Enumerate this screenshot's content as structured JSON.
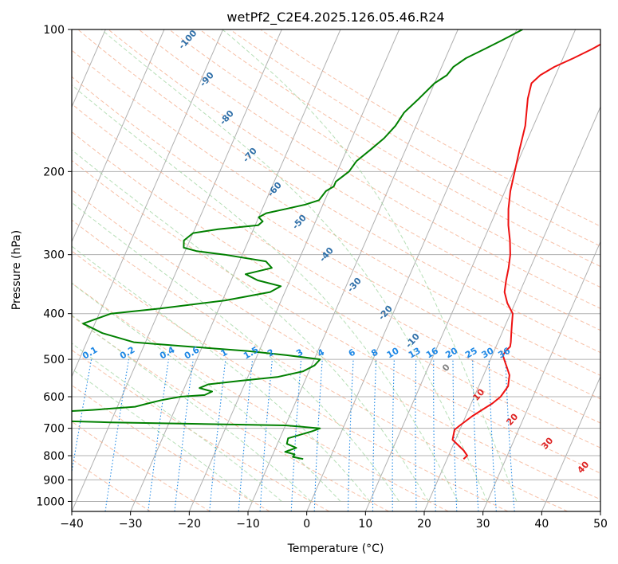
{
  "chart_data": {
    "type": "line",
    "title": "wetPf2_C2E4.2025.126.05.46.R24",
    "xlabel": "Temperature (°C)",
    "ylabel": "Pressure (hPa)",
    "xlim": [
      -40,
      50
    ],
    "ylim_hpa": [
      1050,
      100
    ],
    "y_scale": "log",
    "x_ticks": [
      -40,
      -30,
      -20,
      -10,
      0,
      10,
      20,
      30,
      40,
      50
    ],
    "x_tick_labels": [
      "−40",
      "−30",
      "−20",
      "−10",
      "0",
      "10",
      "20",
      "30",
      "40",
      "50"
    ],
    "y_ticks": [
      1000,
      900,
      800,
      700,
      600,
      500,
      400,
      300,
      200,
      100
    ],
    "y_tick_labels": [
      "1000",
      "900",
      "800",
      "700",
      "600",
      "500",
      "400",
      "300",
      "200",
      "100"
    ],
    "grid": true,
    "skew": true,
    "isotherms_C": [
      -120,
      -110,
      -100,
      -90,
      -80,
      -70,
      -60,
      -50,
      -40,
      -30,
      -20,
      -10,
      0,
      10,
      20,
      30,
      40,
      50
    ],
    "dry_adiabats_C": [
      -30,
      -20,
      -10,
      0,
      10,
      20,
      30,
      40,
      50,
      60,
      70,
      80,
      90,
      100,
      110,
      120,
      130,
      140,
      150,
      160,
      170
    ],
    "moist_adiabats_C": [
      -10,
      -5,
      0,
      5,
      10,
      15,
      20,
      25,
      30,
      35
    ],
    "mixing_ratios": [
      0.1,
      0.2,
      0.4,
      0.6,
      1,
      1.5,
      2,
      3,
      4,
      6,
      8,
      10,
      13,
      16,
      20,
      25,
      30,
      36
    ],
    "mixing_ratio_labels": [
      "0.1",
      "0.2",
      "0.4",
      "0.6",
      "1",
      "1.5",
      "2",
      "3",
      "4",
      "6",
      "8",
      "10",
      "13",
      "16",
      "20",
      "25",
      "30",
      "36"
    ],
    "isotherm_labels_blue": [
      "-100",
      "-90",
      "-80",
      "-70",
      "-60",
      "-50",
      "-40",
      "-30",
      "-20",
      "-10"
    ],
    "isotherm_labels_warm": [
      "0",
      "10",
      "20",
      "30",
      "40"
    ],
    "series": [
      {
        "color": "#ee1111",
        "pressure": [
          813,
          800,
          780,
          740,
          705,
          690,
          660,
          640,
          620,
          600,
          570,
          540,
          520,
          505,
          490,
          480,
          470,
          460,
          440,
          420,
          400,
          380,
          360,
          340,
          320,
          300,
          280,
          260,
          240,
          220,
          200,
          180,
          160,
          140,
          130,
          125,
          120,
          115,
          110,
          105,
          100
        ],
        "temperature": [
          22.8,
          23.2,
          22.2,
          19.5,
          19.1,
          19.7,
          21.1,
          22.3,
          23.6,
          24.5,
          25.0,
          24.4,
          23.4,
          22.6,
          21.8,
          22.0,
          22.4,
          22.2,
          21.6,
          21.0,
          20.4,
          18.7,
          17.4,
          16.8,
          16.3,
          15.6,
          14.5,
          13.1,
          11.9,
          10.9,
          10.2,
          9.4,
          8.6,
          7.0,
          6.5,
          7.4,
          9.2,
          11.8,
          14.3,
          16.5,
          17.1
        ]
      },
      {
        "color": "#008000",
        "pressure": [
          813,
          805,
          795,
          785,
          770,
          755,
          735,
          710,
          700,
          690,
          685,
          680,
          672,
          665,
          655,
          650,
          640,
          630,
          620,
          610,
          600,
          595,
          585,
          575,
          565,
          555,
          545,
          530,
          515,
          500,
          490,
          480,
          470,
          460,
          440,
          420,
          400,
          390,
          375,
          360,
          350,
          340,
          330,
          320,
          310,
          300,
          295,
          290,
          280,
          270,
          265,
          260,
          255,
          250,
          245,
          240,
          235,
          230,
          220,
          215,
          210,
          200,
          190,
          180,
          170,
          160,
          150,
          140,
          130,
          125,
          120,
          115,
          110,
          105,
          100
        ],
        "dewpoint": [
          -4.5,
          -6.4,
          -6.3,
          -8.1,
          -6.5,
          -8.4,
          -8.6,
          -5.0,
          -3.9,
          -10.0,
          -25.0,
          -40.0,
          -55.0,
          -62.0,
          -62.0,
          -54.0,
          -44.0,
          -37.0,
          -35.0,
          -33.0,
          -30.0,
          -26.0,
          -25.0,
          -27.4,
          -26.2,
          -21.0,
          -15.0,
          -11.0,
          -9.5,
          -9.0,
          -15.0,
          -22.0,
          -32.0,
          -42.0,
          -48.0,
          -52.0,
          -48.0,
          -40.0,
          -29.5,
          -22.5,
          -21.1,
          -25.5,
          -28.0,
          -24.0,
          -25.5,
          -33.0,
          -38.0,
          -40.5,
          -41.0,
          -40.0,
          -36.0,
          -29.5,
          -29.0,
          -30.0,
          -29.0,
          -26.0,
          -23.0,
          -21.0,
          -20.5,
          -19.5,
          -19.5,
          -18.0,
          -17.5,
          -16.0,
          -14.5,
          -13.5,
          -13.0,
          -11.5,
          -10.0,
          -8.5,
          -8.0,
          -6.5,
          -4.0,
          -1.5,
          1.0
        ]
      }
    ]
  }
}
